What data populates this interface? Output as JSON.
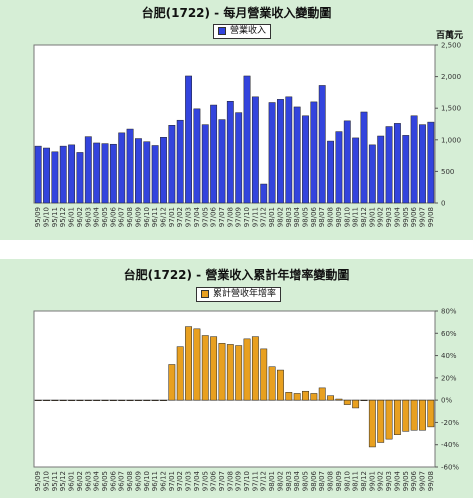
{
  "chart_data": [
    {
      "type": "bar",
      "title": "台肥(1722) - 每月營業收入變動圖",
      "unit_label": "百萬元",
      "legend": "營業收入",
      "ylim": [
        0,
        2500
      ],
      "yticks": [
        "0",
        "500",
        "1,000",
        "1,500",
        "2,000",
        "2,500"
      ],
      "ytick_values": [
        0,
        500,
        1000,
        1500,
        2000,
        2500
      ],
      "grid": false,
      "color": "#3344dd",
      "categories": [
        "95/09",
        "95/10",
        "95/11",
        "95/12",
        "96/01",
        "96/02",
        "96/03",
        "96/04",
        "96/05",
        "96/06",
        "96/07",
        "96/08",
        "96/09",
        "96/10",
        "96/11",
        "96/12",
        "97/01",
        "97/02",
        "97/03",
        "97/04",
        "97/05",
        "97/06",
        "97/07",
        "97/08",
        "97/09",
        "97/10",
        "97/11",
        "97/12",
        "98/01",
        "98/02",
        "98/03",
        "98/04",
        "98/05",
        "98/06",
        "98/07",
        "98/08",
        "98/09",
        "98/10",
        "98/11",
        "98/12",
        "99/01",
        "99/02",
        "99/03",
        "99/04",
        "99/05",
        "99/06",
        "99/07",
        "99/08"
      ],
      "values": [
        900,
        870,
        810,
        900,
        920,
        800,
        1050,
        950,
        940,
        930,
        1110,
        1170,
        1020,
        970,
        910,
        1040,
        1230,
        1310,
        2010,
        1490,
        1240,
        1550,
        1320,
        1610,
        1430,
        2010,
        1680,
        300,
        1590,
        1640,
        1680,
        1520,
        1380,
        1600,
        1860,
        980,
        1130,
        1300,
        1030,
        1440,
        920,
        1060,
        1210,
        1260,
        1070,
        1380,
        1240,
        1280
      ]
    },
    {
      "type": "bar",
      "title": "台肥(1722) - 營業收入累計年增率變動圖",
      "legend": "累計營收年增率",
      "ylim": [
        -60,
        80
      ],
      "yticks": [
        "80%",
        "60%",
        "40%",
        "20%",
        "0%",
        "-20%",
        "-40%",
        "-60%"
      ],
      "ytick_values": [
        80,
        60,
        40,
        20,
        0,
        -20,
        -40,
        -60
      ],
      "grid": false,
      "color": "#e8a020",
      "categories": [
        "95/09",
        "95/10",
        "95/11",
        "95/12",
        "96/01",
        "96/02",
        "96/03",
        "96/04",
        "96/05",
        "96/06",
        "96/07",
        "96/08",
        "96/09",
        "96/10",
        "96/11",
        "96/12",
        "97/01",
        "97/02",
        "97/03",
        "97/04",
        "97/05",
        "97/06",
        "97/07",
        "97/08",
        "97/09",
        "97/10",
        "97/11",
        "97/12",
        "98/01",
        "98/02",
        "98/03",
        "98/04",
        "98/05",
        "98/06",
        "98/07",
        "98/08",
        "98/09",
        "98/10",
        "98/11",
        "98/12",
        "99/01",
        "99/02",
        "99/03",
        "99/04",
        "99/05",
        "99/06",
        "99/07",
        "99/08"
      ],
      "values": [
        0,
        0,
        0,
        0,
        0,
        0,
        0,
        0,
        0,
        0,
        0,
        0,
        0,
        0,
        0,
        0,
        32,
        48,
        66,
        64,
        58,
        57,
        51,
        50,
        49,
        55,
        57,
        46,
        30,
        27,
        7,
        6,
        8,
        6,
        11,
        4,
        1,
        -4,
        -7,
        0,
        -42,
        -38,
        -35,
        -31,
        -28,
        -27,
        -27,
        -24
      ]
    }
  ]
}
